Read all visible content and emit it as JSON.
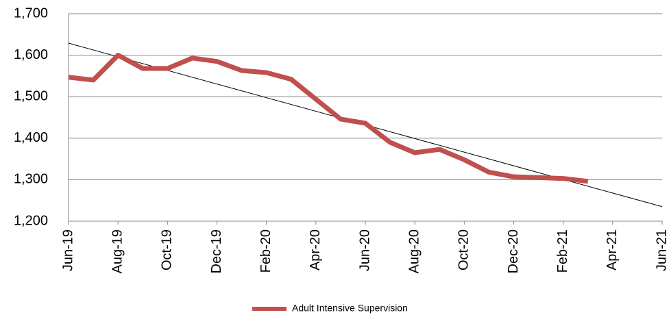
{
  "chart_data": {
    "type": "line",
    "categories": [
      "Jun-19",
      null,
      "Aug-19",
      null,
      "Oct-19",
      null,
      "Dec-19",
      null,
      "Feb-20",
      null,
      "Apr-20",
      null,
      "Jun-20",
      null,
      "Aug-20",
      null,
      "Oct-20",
      null,
      "Dec-20",
      null,
      "Feb-21",
      null,
      "Apr-21",
      null,
      "Jun-21"
    ],
    "series": [
      {
        "name": "Adult Intensive Supervision",
        "color": "#c0504d",
        "values": [
          1547,
          1540,
          1600,
          1568,
          1568,
          1593,
          1585,
          1563,
          1558,
          1542,
          1494,
          1446,
          1436,
          1390,
          1365,
          1373,
          1348,
          1318,
          1307,
          1305,
          1303,
          1296,
          null,
          null,
          null
        ],
        "trendline": {
          "start": 1629,
          "end": 1235,
          "color": "#000000"
        }
      }
    ],
    "ylim": [
      1200,
      1700
    ],
    "yticks": [
      {
        "value": 1200,
        "label": "1,200"
      },
      {
        "value": 1300,
        "label": "1,300"
      },
      {
        "value": 1400,
        "label": "1,400"
      },
      {
        "value": 1500,
        "label": "1,500"
      },
      {
        "value": 1600,
        "label": "1,600"
      },
      {
        "value": 1700,
        "label": "1,700"
      }
    ],
    "grid": true,
    "legend": "bottom"
  }
}
